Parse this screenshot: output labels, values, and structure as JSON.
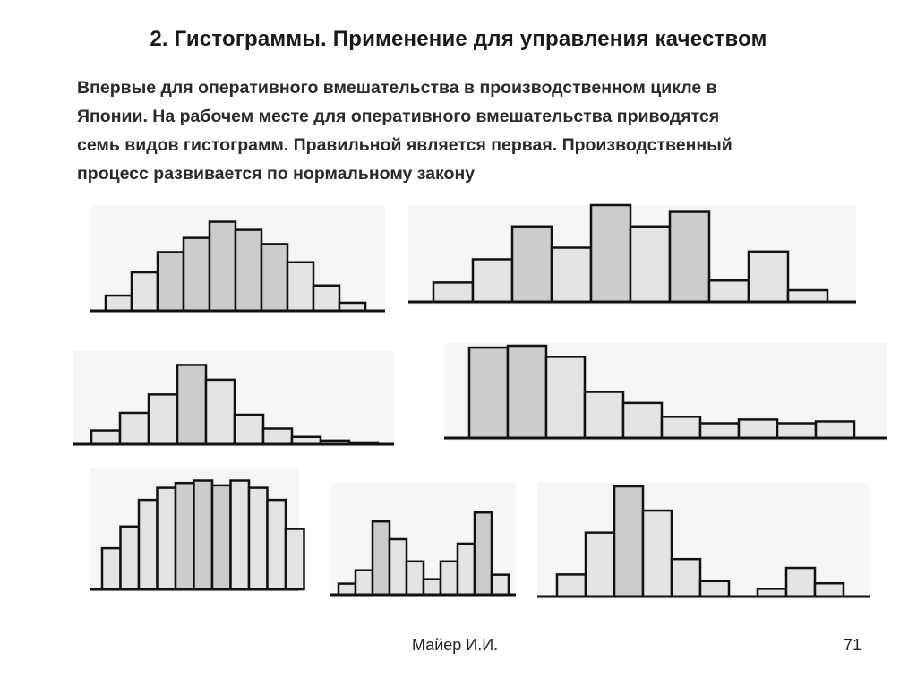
{
  "slide": {
    "title": "2. Гистограммы. Применение для управления качеством",
    "body_lines": [
      "Впервые для оперативного вмешательства в производственном цикле в",
      "Японии. На рабочем месте для оперативного вмешательства приводятся",
      "семь видов гистограмм. Правильной является первая. Производственный",
      "процесс развивается по нормальному закону"
    ],
    "footer_author": "Майер И.И.",
    "footer_page": "71"
  },
  "colors": {
    "bar_light": "#e4e4e4",
    "bar_dark": "#cccccc",
    "bar_stroke": "#111111",
    "panel_bg": "#f6f6f6"
  },
  "histograms": [
    {
      "id": "normal",
      "values": [
        0.15,
        0.38,
        0.58,
        0.72,
        0.88,
        0.8,
        0.66,
        0.48,
        0.25,
        0.08
      ],
      "dark": [
        2,
        3,
        4,
        5,
        6
      ]
    },
    {
      "id": "comb",
      "values": [
        0.2,
        0.44,
        0.78,
        0.56,
        1.0,
        0.78,
        0.93,
        0.22,
        0.52,
        0.12
      ],
      "dark": [
        2,
        4,
        6
      ]
    },
    {
      "id": "positively-skewed",
      "values": [
        0.15,
        0.34,
        0.54,
        0.86,
        0.7,
        0.32,
        0.17,
        0.08,
        0.04,
        0.02
      ],
      "dark": [
        3
      ]
    },
    {
      "id": "precipice",
      "values": [
        0.98,
        1.0,
        0.88,
        0.5,
        0.38,
        0.23,
        0.16,
        0.2,
        0.16,
        0.18
      ],
      "dark": [
        0,
        1
      ]
    },
    {
      "id": "plateau",
      "values": [
        0.34,
        0.52,
        0.74,
        0.84,
        0.88,
        0.9,
        0.86,
        0.9,
        0.84,
        0.74,
        0.5
      ],
      "dark": [
        4,
        5,
        6
      ]
    },
    {
      "id": "double-peaked",
      "values": [
        0.1,
        0.22,
        0.66,
        0.5,
        0.3,
        0.14,
        0.3,
        0.46,
        0.74,
        0.18
      ],
      "dark": [
        2,
        8
      ]
    },
    {
      "id": "isolated-peak",
      "values": [
        0.2,
        0.58,
        1.0,
        0.78,
        0.34,
        0.14,
        null,
        0.07,
        0.26,
        0.12
      ],
      "dark": [
        2
      ]
    }
  ]
}
